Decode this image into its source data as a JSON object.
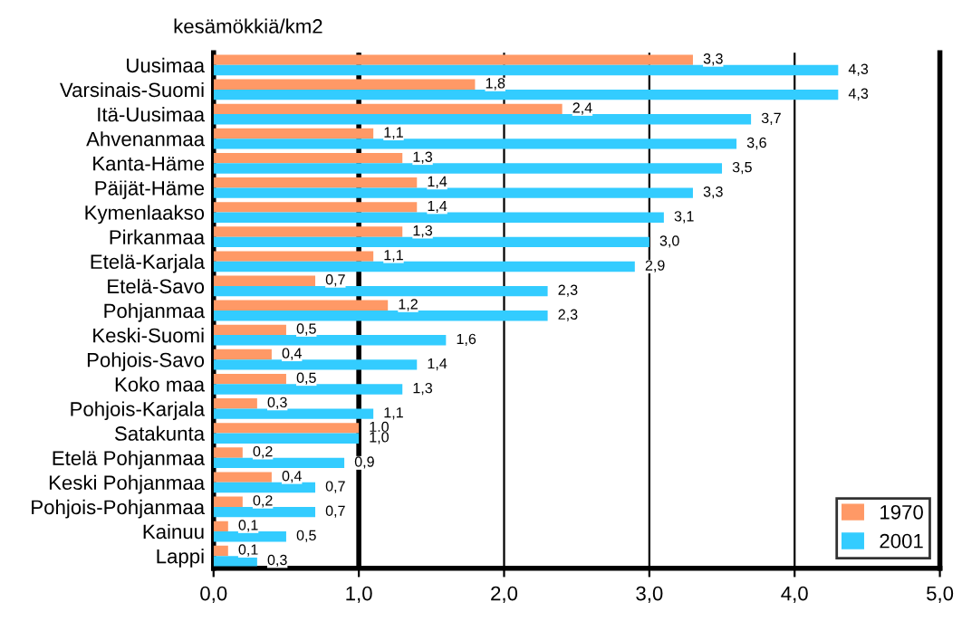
{
  "chart_data": {
    "type": "bar",
    "orientation": "horizontal",
    "title": "kesämökkiä/km2",
    "categories": [
      "Uusimaa",
      "Varsinais-Suomi",
      "Itä-Uusimaa",
      "Ahvenanmaa",
      "Kanta-Häme",
      "Päijät-Häme",
      "Kymenlaakso",
      "Pirkanmaa",
      "Etelä-Karjala",
      "Etelä-Savo",
      "Pohjanmaa",
      "Keski-Suomi",
      "Pohjois-Savo",
      "Koko maa",
      "Pohjois-Karjala",
      "Satakunta",
      "Etelä Pohjanmaa",
      "Keski Pohjanmaa",
      "Pohjois-Pohjanmaa",
      "Kainuu",
      "Lappi"
    ],
    "series": [
      {
        "name": "1970",
        "color": "#ff9966",
        "values": [
          3.3,
          1.8,
          2.4,
          1.1,
          1.3,
          1.4,
          1.4,
          1.3,
          1.1,
          0.7,
          1.2,
          0.5,
          0.4,
          0.5,
          0.3,
          1.0,
          0.2,
          0.4,
          0.2,
          0.1,
          0.1
        ],
        "value_labels": [
          "3,3",
          "1,8",
          "2,4",
          "1,1",
          "1,3",
          "1,4",
          "1,4",
          "1,3",
          "1,1",
          "0,7",
          "1,2",
          "0,5",
          "0,4",
          "0,5",
          "0,3",
          "1,0",
          "0,2",
          "0,4",
          "0,2",
          "0,1",
          "0,1"
        ]
      },
      {
        "name": "2001",
        "color": "#33ccff",
        "values": [
          4.3,
          4.3,
          3.7,
          3.6,
          3.5,
          3.3,
          3.1,
          3.0,
          2.9,
          2.3,
          2.3,
          1.6,
          1.4,
          1.3,
          1.1,
          1.0,
          0.9,
          0.7,
          0.7,
          0.5,
          0.3
        ],
        "value_labels": [
          "4,3",
          "4,3",
          "3,7",
          "3,6",
          "3,5",
          "3,3",
          "3,1",
          "3,0",
          "2,9",
          "2,3",
          "2,3",
          "1,6",
          "1,4",
          "1,3",
          "1,1",
          "1,0",
          "0,9",
          "0,7",
          "0,7",
          "0,5",
          "0,3"
        ]
      }
    ],
    "xlim": [
      0,
      5
    ],
    "xticks": [
      {
        "value": 0,
        "label": "0,0"
      },
      {
        "value": 1,
        "label": "1,0"
      },
      {
        "value": 2,
        "label": "2,0"
      },
      {
        "value": 3,
        "label": "3,0"
      },
      {
        "value": 4,
        "label": "4,0"
      },
      {
        "value": 5,
        "label": "5,0"
      }
    ],
    "ref_lines": [
      {
        "axis": "x",
        "value": 1,
        "color": "#000000"
      }
    ],
    "grid": "x",
    "legend": "bottom right"
  }
}
